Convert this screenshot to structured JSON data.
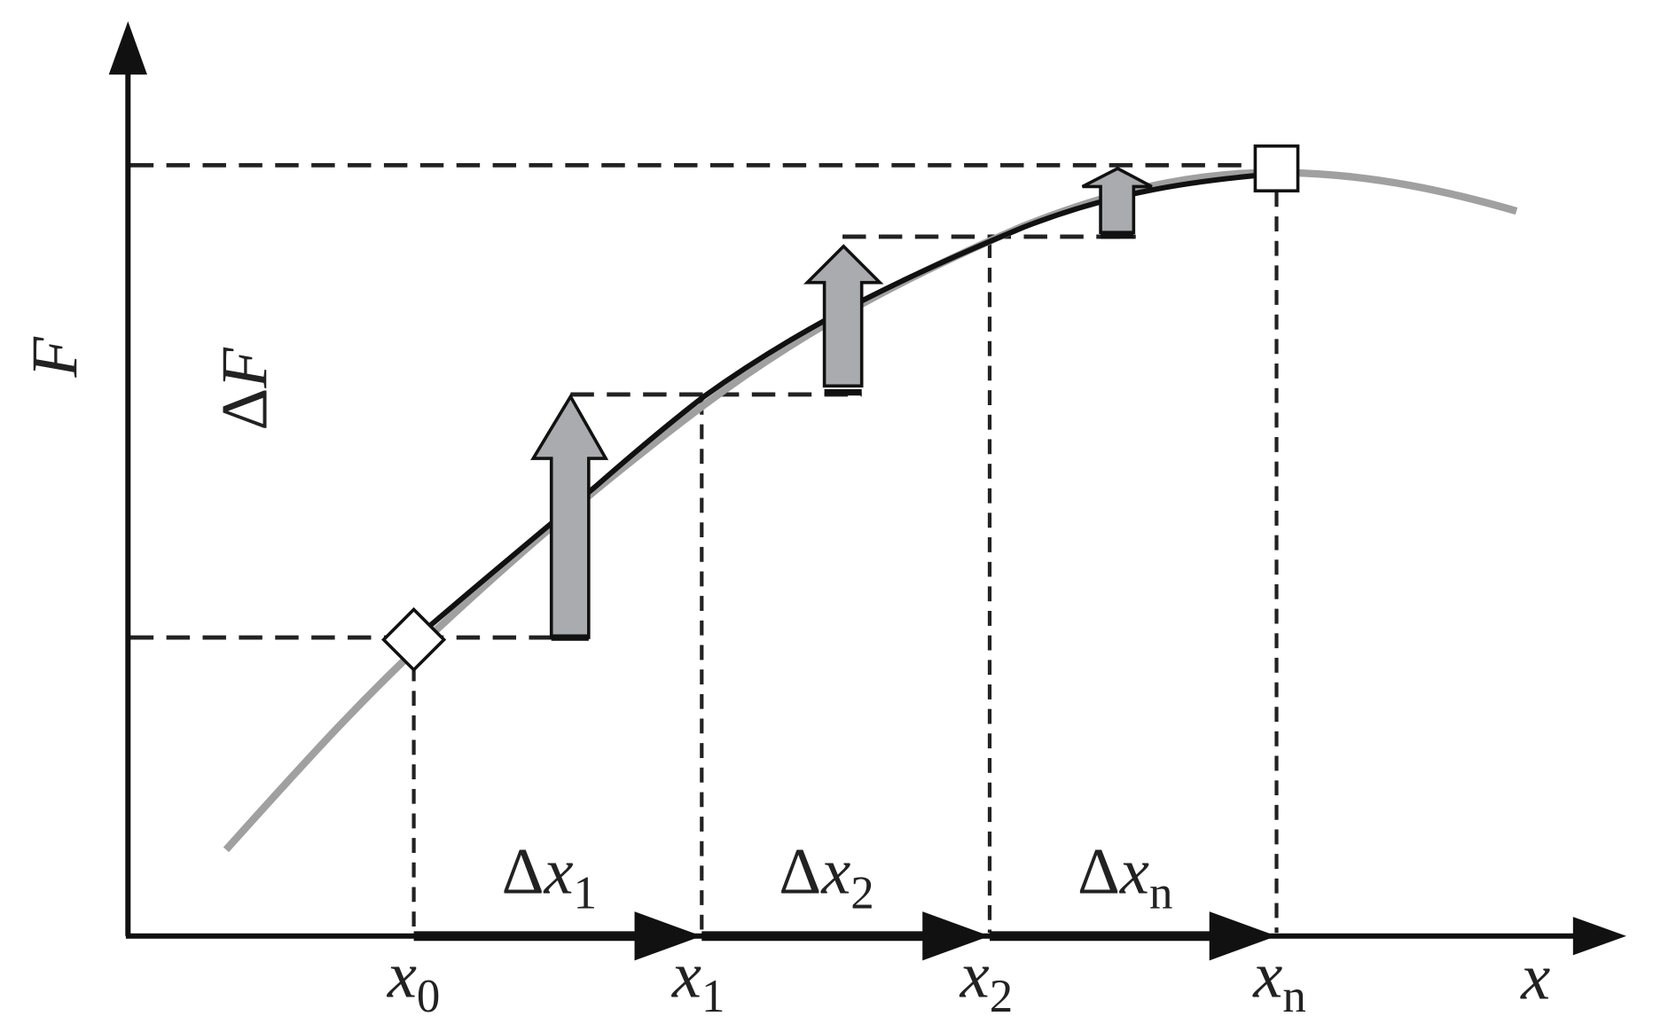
{
  "axes": {
    "y_label": "F",
    "x_label": "x"
  },
  "delta_f": {
    "prefix": "Δ",
    "variable": "F"
  },
  "intervals": [
    {
      "prefix": "Δ",
      "variable": "x",
      "subscript": "1"
    },
    {
      "prefix": "Δ",
      "variable": "x",
      "subscript": "2"
    },
    {
      "prefix": "Δ",
      "variable": "x",
      "subscript": "n"
    }
  ],
  "points": [
    {
      "variable": "x",
      "subscript": "0"
    },
    {
      "variable": "x",
      "subscript": "1"
    },
    {
      "variable": "x",
      "subscript": "2"
    },
    {
      "variable": "x",
      "subscript": "n"
    }
  ]
}
